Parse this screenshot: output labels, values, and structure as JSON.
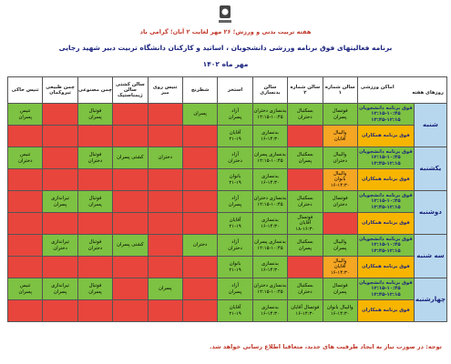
{
  "header": {
    "notice": "هفته تربیت بدنی و ورزش؛ ۲۶ مهر لغایت ۲ آبان؛ گرامی باد",
    "title": "برنامه فعالیتهای فوق برنامه ورزشی دانشجویان ، اساتید و کارکنان دانشگاه تربیت دبیر شهید رجایی",
    "date": "مهر ماه ۱۴۰۲"
  },
  "table": {
    "corner": [
      "اماکن ورزشی",
      "روزهای هفته"
    ],
    "columns": [
      "سالن شماره ۱",
      "سالن شماره ۲",
      "سالن بدنسازی",
      "استخر",
      "شطرنج",
      "تنیس روی میز",
      "سالن کشتی سالن ژیمناستیک",
      "چمن مصنوعی",
      "چمن طبیعی تیروکمان",
      "تنیس خاکی"
    ],
    "student_label": "فوق برنامه دانشجویان",
    "student_times": [
      "۱۲:۱۵-۱۰:۴۵",
      "۱۳:۴۵-۱۲:۱۵"
    ],
    "staff_label": "فوق برنامه همکاران",
    "days": [
      {
        "name": "شنبه",
        "student": [
          {
            "color": "#7dc242",
            "lines": [
              "فوتسال",
              "پسران"
            ]
          },
          {
            "color": "#7dc242",
            "lines": [
              "بسکتبال",
              "دختران"
            ]
          },
          {
            "color": "#7dc242",
            "lines": [
              "بدنسازی دختران",
              "۱۲:۱۵-۱۰:۴۵"
            ]
          },
          {
            "color": "#7dc242",
            "lines": [
              "آزاد",
              "پسران"
            ]
          },
          {
            "color": "#7dc242",
            "lines": [
              "پسران"
            ]
          },
          {
            "color": "#e8453c"
          },
          {
            "color": "#e8453c"
          },
          {
            "color": "#7dc242",
            "lines": [
              "فوتبال",
              "پسران"
            ]
          },
          {
            "color": "#e8453c"
          },
          {
            "color": "#7dc242",
            "lines": [
              "تنیس",
              "پسران"
            ]
          }
        ],
        "staff": [
          {
            "color": "#f5a623",
            "lines": [
              "والیبال",
              "آقایان"
            ]
          },
          {
            "color": "#e8453c"
          },
          {
            "color": "#7dc242",
            "lines": [
              "بدنسازی",
              "۱۶-۱۴:۳۰"
            ]
          },
          {
            "color": "#7dc242",
            "lines": [
              "آقایان",
              "۲۱-۱۹"
            ]
          },
          {
            "color": "#e8453c"
          },
          {
            "color": "#e8453c"
          },
          {
            "color": "#e8453c"
          },
          {
            "color": "#e8453c"
          },
          {
            "color": "#e8453c"
          },
          {
            "color": "#e8453c"
          }
        ]
      },
      {
        "name": "یکشنبه",
        "student": [
          {
            "color": "#7dc242",
            "lines": [
              "والیبال",
              "دختران"
            ]
          },
          {
            "color": "#7dc242",
            "lines": [
              "بسکتبال",
              "پسران"
            ]
          },
          {
            "color": "#7dc242",
            "lines": [
              "بدنسازی پسران",
              "۱۲:۱۵-۱۰:۴۵"
            ]
          },
          {
            "color": "#7dc242",
            "lines": [
              "آزاد",
              "دختران"
            ]
          },
          {
            "color": "#e8453c"
          },
          {
            "color": "#7dc242",
            "lines": [
              "دختران"
            ]
          },
          {
            "color": "#7dc242",
            "lines": [
              "کشتی پسران"
            ]
          },
          {
            "color": "#7dc242",
            "lines": [
              "فوتبال",
              "دختران"
            ]
          },
          {
            "color": "#e8453c"
          },
          {
            "color": "#7dc242",
            "lines": [
              "تنیس",
              "دختران"
            ]
          }
        ],
        "staff": [
          {
            "color": "#f5a623",
            "lines": [
              "والیبال",
              "بانوان",
              "۱۶-۱۴:۳۰"
            ]
          },
          {
            "color": "#e8453c"
          },
          {
            "color": "#7dc242",
            "lines": [
              "بدنسازی",
              "۱۶-۱۴:۳۰"
            ]
          },
          {
            "color": "#7dc242",
            "lines": [
              "بانوان",
              "۲۱-۱۹"
            ]
          },
          {
            "color": "#e8453c"
          },
          {
            "color": "#e8453c"
          },
          {
            "color": "#e8453c"
          },
          {
            "color": "#e8453c"
          },
          {
            "color": "#e8453c"
          },
          {
            "color": "#e8453c"
          }
        ]
      },
      {
        "name": "دوشنبه",
        "student": [
          {
            "color": "#7dc242",
            "lines": [
              "فوتسال",
              "دختران"
            ]
          },
          {
            "color": "#7dc242",
            "lines": [
              "بسکتبال",
              "دختران"
            ]
          },
          {
            "color": "#7dc242",
            "lines": [
              "بدنسازی دختران",
              "۱۲:۱۵-۱۰:۴۵"
            ]
          },
          {
            "color": "#7dc242",
            "lines": [
              "آزاد",
              "پسران"
            ]
          },
          {
            "color": "#e8453c"
          },
          {
            "color": "#e8453c"
          },
          {
            "color": "#e8453c"
          },
          {
            "color": "#7dc242",
            "lines": [
              "فوتبال",
              "پسران"
            ]
          },
          {
            "color": "#7dc242",
            "lines": [
              "تیراندازی",
              "پسران"
            ]
          },
          {
            "color": "#e8453c"
          }
        ],
        "staff": [
          {
            "color": "#e8453c"
          },
          {
            "color": "#7dc242",
            "lines": [
              "فوتسال",
              "آقایان",
              "۱۸-۱۶:۳۰"
            ]
          },
          {
            "color": "#7dc242",
            "lines": [
              "بدنسازی",
              "۱۶-۱۴:۳۰"
            ]
          },
          {
            "color": "#7dc242",
            "lines": [
              "آقایان",
              "۲۱-۱۹"
            ]
          },
          {
            "color": "#e8453c"
          },
          {
            "color": "#e8453c"
          },
          {
            "color": "#e8453c"
          },
          {
            "color": "#e8453c"
          },
          {
            "color": "#e8453c"
          },
          {
            "color": "#e8453c"
          }
        ]
      },
      {
        "name": "سه شنبه",
        "student": [
          {
            "color": "#7dc242",
            "lines": [
              "والیبال",
              "پسران"
            ]
          },
          {
            "color": "#7dc242",
            "lines": [
              "بسکتبال",
              "پسران"
            ]
          },
          {
            "color": "#7dc242",
            "lines": [
              "بدنسازی پسران",
              "۱۲:۱۵-۱۰:۴۵"
            ]
          },
          {
            "color": "#7dc242",
            "lines": [
              "آزاد",
              "دختران"
            ]
          },
          {
            "color": "#7dc242",
            "lines": [
              "دختران"
            ]
          },
          {
            "color": "#e8453c"
          },
          {
            "color": "#7dc242",
            "lines": [
              "کشتی پسران"
            ]
          },
          {
            "color": "#7dc242",
            "lines": [
              "فوتبال",
              "دختران"
            ]
          },
          {
            "color": "#7dc242",
            "lines": [
              "تیراندازی",
              "دختران"
            ]
          },
          {
            "color": "#e8453c"
          }
        ],
        "staff": [
          {
            "color": "#f5a623",
            "lines": [
              "والیبال",
              "آقایان",
              "۱۶-۱۴:۳۰"
            ]
          },
          {
            "color": "#e8453c"
          },
          {
            "color": "#7dc242",
            "lines": [
              "بدنسازی",
              "۱۶-۱۴:۳۰"
            ]
          },
          {
            "color": "#7dc242",
            "lines": [
              "بانوان",
              "۲۱-۱۹"
            ]
          },
          {
            "color": "#e8453c"
          },
          {
            "color": "#e8453c"
          },
          {
            "color": "#e8453c"
          },
          {
            "color": "#e8453c"
          },
          {
            "color": "#e8453c"
          },
          {
            "color": "#e8453c"
          }
        ]
      },
      {
        "name": "چهارشنبه",
        "student": [
          {
            "color": "#7dc242",
            "lines": [
              "فوتسال",
              "پسران"
            ]
          },
          {
            "color": "#7dc242",
            "lines": [
              "بسکتبال",
              "دختران"
            ]
          },
          {
            "color": "#7dc242",
            "lines": [
              "بدنسازی دختران",
              "۱۲:۱۵-۱۰:۴۵"
            ]
          },
          {
            "color": "#7dc242",
            "lines": [
              "آزاد",
              "پسران"
            ]
          },
          {
            "color": "#e8453c"
          },
          {
            "color": "#7dc242",
            "lines": [
              "پسران"
            ]
          },
          {
            "color": "#e8453c"
          },
          {
            "color": "#7dc242",
            "lines": [
              "فوتبال",
              "پسران"
            ]
          },
          {
            "color": "#7dc242",
            "lines": [
              "تیراندازی",
              "پسران"
            ]
          },
          {
            "color": "#7dc242",
            "lines": [
              "تنیس",
              "پسران"
            ]
          }
        ],
        "staff": [
          {
            "color": "#7dc242",
            "lines": [
              "والیبال بانوان",
              "۱۶-۱۴:۳۰"
            ]
          },
          {
            "color": "#7dc242",
            "lines": [
              "فوتسال آقایان",
              "۱۶-۱۴:۳۰"
            ]
          },
          {
            "color": "#7dc242",
            "lines": [
              "بدنسازی",
              "۱۶-۱۴:۳۰"
            ]
          },
          {
            "color": "#7dc242",
            "lines": [
              "آقایان",
              "۲۱-۱۹"
            ]
          },
          {
            "color": "#e8453c"
          },
          {
            "color": "#e8453c"
          },
          {
            "color": "#e8453c"
          },
          {
            "color": "#e8453c"
          },
          {
            "color": "#e8453c"
          },
          {
            "color": "#e8453c"
          }
        ]
      }
    ]
  },
  "note": "توجه: در صورت نیاز به ایجاد ظرفیت های جدید، متعاقبا اطلاع رسانی خواهد شد."
}
